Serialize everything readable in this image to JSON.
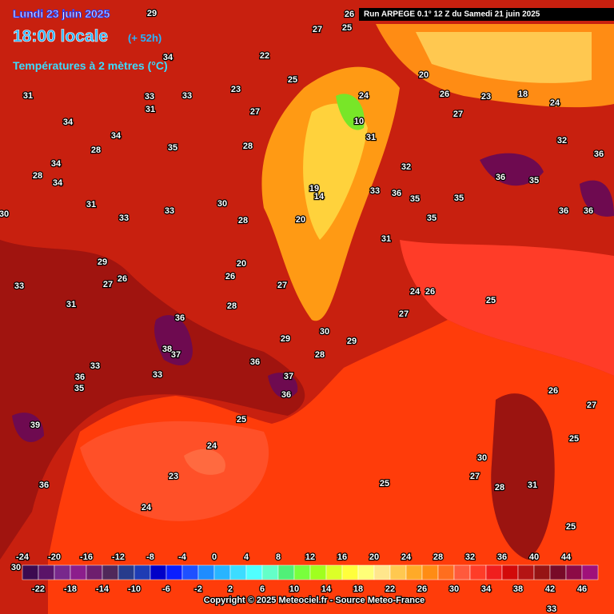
{
  "header": {
    "date": "Lundi 23 juin 2025",
    "time": "18:00 locale",
    "lead": "(+ 52h)",
    "variable": "Températures à 2 mètres (°C)",
    "run": "Run ARPEGE 0.1° 12 Z du Samedi 21 juin 2025"
  },
  "scale": {
    "ticks": [
      -24,
      -22,
      -20,
      -18,
      -16,
      -14,
      -12,
      -10,
      -8,
      -6,
      -4,
      -2,
      0,
      2,
      4,
      6,
      8,
      10,
      12,
      14,
      16,
      18,
      20,
      22,
      24,
      26,
      28,
      30,
      32,
      34,
      36,
      38,
      40,
      42,
      44,
      46
    ],
    "colors": [
      "#3c0a50",
      "#5a1468",
      "#78288c",
      "#8c1e8c",
      "#6e1e6e",
      "#50285a",
      "#283c8c",
      "#1e3cb4",
      "#0000c8",
      "#0a1eff",
      "#1e50ff",
      "#1e8cff",
      "#28b4ff",
      "#3cdcff",
      "#50ffff",
      "#64ffc8",
      "#50f078",
      "#78ff3c",
      "#a0ff1e",
      "#dcff28",
      "#ffff3c",
      "#ffff78",
      "#ffe68c",
      "#ffc850",
      "#ffaa28",
      "#ff8c14",
      "#ff6e1e",
      "#ff5a3c",
      "#ff3c28",
      "#f01e1e",
      "#d20a0a",
      "#b41414",
      "#961414",
      "#780a28",
      "#8c0a46",
      "#a0107a"
    ]
  },
  "map_labels": [
    29,
    26,
    27,
    25,
    34,
    31,
    33,
    33,
    34,
    34,
    31,
    28,
    35,
    34,
    28,
    34,
    31,
    33,
    33,
    30,
    29,
    27,
    26,
    33,
    31,
    36,
    38,
    37,
    33,
    36,
    35,
    33,
    36,
    37,
    36,
    25,
    24,
    23,
    24,
    25,
    25,
    26,
    25,
    27,
    36,
    35,
    36,
    36,
    35,
    35,
    36,
    35,
    33,
    31,
    25,
    26,
    24,
    27,
    29,
    28,
    30,
    31,
    32,
    32,
    36,
    24,
    26,
    27,
    20,
    18,
    23,
    20,
    19,
    14,
    10,
    24,
    25,
    22,
    27,
    23,
    28,
    30,
    28,
    20,
    26,
    27,
    29,
    28,
    39,
    36,
    30,
    27,
    30,
    31,
    28,
    33
  ],
  "copyright": "Copyright © 2025 Meteociel.fr - Source Meteo-France"
}
